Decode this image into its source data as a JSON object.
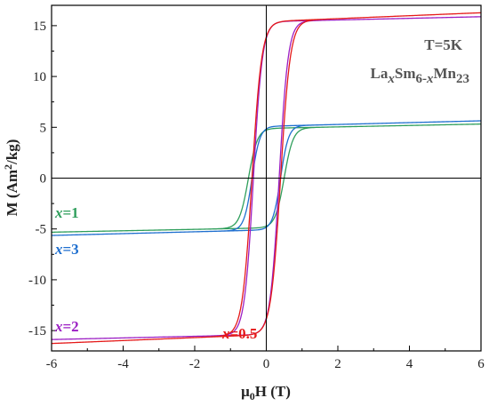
{
  "chart_data": {
    "type": "line",
    "xlabel": "μ0H (T)",
    "ylabel": "M (Am2/kg)",
    "xlim": [
      -6,
      6
    ],
    "ylim": [
      -17,
      17
    ],
    "x_ticks": [
      -6,
      -4,
      -2,
      0,
      2,
      4,
      6
    ],
    "y_ticks": [
      -15,
      -10,
      -5,
      0,
      5,
      10,
      15
    ],
    "grid": false,
    "reference_lines": {
      "x": 0,
      "y": 0
    },
    "annotations": {
      "temperature": "T=5K",
      "formula": {
        "a": "La",
        "b": "x",
        "c": "Sm",
        "d": "6-",
        "e": "x",
        "f": "Mn",
        "g": "23"
      }
    },
    "series": [
      {
        "name": "x=1",
        "label_var": "x",
        "label_val": "=1",
        "color": "#2e9e5b",
        "Ms": 4.9,
        "chi": 0.07,
        "coercivity": 0.5,
        "width": 0.25
      },
      {
        "name": "x=3",
        "label_var": "x",
        "label_val": "=3",
        "color": "#1f6fcf",
        "Ms": 5.1,
        "chi": 0.09,
        "coercivity": 0.4,
        "width": 0.22
      },
      {
        "name": "x=2",
        "label_var": "x",
        "label_val": "=2",
        "color": "#9c1fc4",
        "Ms": 15.4,
        "chi": 0.08,
        "coercivity": 0.36,
        "width": 0.25
      },
      {
        "name": "x=0.5",
        "label_var": "x",
        "label_val": "=0.5",
        "color": "#e51919",
        "Ms": 15.4,
        "chi": 0.145,
        "coercivity": 0.4,
        "width": 0.27
      }
    ]
  }
}
